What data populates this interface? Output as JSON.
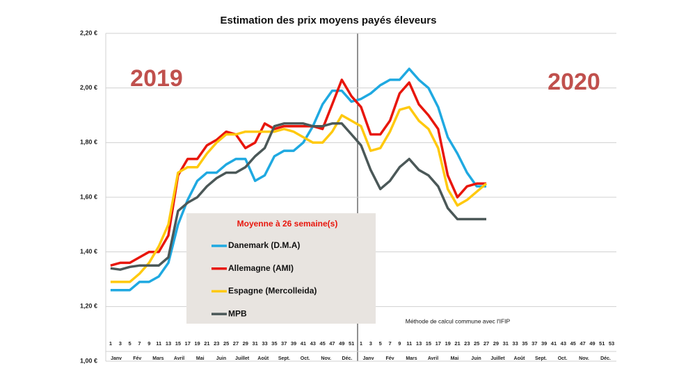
{
  "chart_data": {
    "type": "line",
    "title": "Estimation des prix moyens payés éleveurs",
    "categories": [
      "1",
      "3",
      "5",
      "7",
      "9",
      "11",
      "13",
      "15",
      "17",
      "19",
      "21",
      "23",
      "25",
      "27",
      "29",
      "31",
      "33",
      "35",
      "37",
      "39",
      "41",
      "43",
      "45",
      "47",
      "49",
      "51",
      "1",
      "3",
      "5",
      "7",
      "9",
      "11",
      "13",
      "15",
      "17",
      "19",
      "21",
      "23",
      "25",
      "27",
      "29",
      "31",
      "33",
      "35",
      "37",
      "39",
      "41",
      "43",
      "45",
      "47",
      "49",
      "51",
      "53"
    ],
    "month_labels": [
      "Janv",
      "Fév",
      "Mars",
      "Avril",
      "Mai",
      "Juin",
      "Juillet",
      "Août",
      "Sept.",
      "Oct.",
      "Nov.",
      "Déc.",
      "Janv",
      "Fév",
      "Mars",
      "Avril",
      "Mai",
      "Juin",
      "Juillet",
      "Août",
      "Sept.",
      "Oct.",
      "Nov.",
      "Déc."
    ],
    "year_labels": [
      "2019",
      "2020"
    ],
    "year_color": "#c0504d",
    "legend_title": "Moyenne à 26 semaine(s)",
    "note": "Méthode de calcul commune avec l'IFIP",
    "ylim": [
      1.0,
      2.2
    ],
    "yticks": [
      {
        "value": 1.0,
        "label": "1,00 €"
      },
      {
        "value": 1.2,
        "label": "1,20 €"
      },
      {
        "value": 1.4,
        "label": "1,40 €"
      },
      {
        "value": 1.6,
        "label": "1,60 €"
      },
      {
        "value": 1.8,
        "label": "1,80 €"
      },
      {
        "value": 2.0,
        "label": "2,00 €"
      },
      {
        "value": 2.2,
        "label": "2,20 €"
      }
    ],
    "grid": true,
    "series": [
      {
        "name": "Danemark (D.M.A)",
        "color": "#1fa9e1",
        "values": [
          1.26,
          1.26,
          1.26,
          1.29,
          1.29,
          1.31,
          1.36,
          1.5,
          1.59,
          1.66,
          1.69,
          1.69,
          1.72,
          1.74,
          1.74,
          1.66,
          1.68,
          1.75,
          1.77,
          1.77,
          1.8,
          1.86,
          1.94,
          1.99,
          1.99,
          1.95,
          1.96,
          1.98,
          2.01,
          2.03,
          2.03,
          2.07,
          2.03,
          2.0,
          1.93,
          1.82,
          1.76,
          1.69,
          1.64,
          1.64,
          null,
          null,
          null,
          null,
          null,
          null,
          null,
          null,
          null,
          null,
          null,
          null,
          null
        ]
      },
      {
        "name": "Allemagne (AMI)",
        "color": "#e8160c",
        "values": [
          1.35,
          1.36,
          1.36,
          1.38,
          1.4,
          1.4,
          1.46,
          1.68,
          1.74,
          1.74,
          1.79,
          1.81,
          1.84,
          1.83,
          1.78,
          1.8,
          1.87,
          1.85,
          1.86,
          1.86,
          1.86,
          1.86,
          1.85,
          1.94,
          2.03,
          1.97,
          1.93,
          1.83,
          1.83,
          1.88,
          1.98,
          2.02,
          1.94,
          1.9,
          1.85,
          1.68,
          1.6,
          1.64,
          1.65,
          1.65,
          null,
          null,
          null,
          null,
          null,
          null,
          null,
          null,
          null,
          null,
          null,
          null,
          null
        ]
      },
      {
        "name": "Espagne (Mercolleida)",
        "color": "#ffc90e",
        "values": [
          1.29,
          1.29,
          1.29,
          1.32,
          1.36,
          1.42,
          1.5,
          1.69,
          1.71,
          1.71,
          1.76,
          1.8,
          1.83,
          1.83,
          1.84,
          1.84,
          1.84,
          1.84,
          1.85,
          1.84,
          1.82,
          1.8,
          1.8,
          1.84,
          1.9,
          1.88,
          1.86,
          1.77,
          1.78,
          1.84,
          1.92,
          1.93,
          1.88,
          1.85,
          1.78,
          1.63,
          1.57,
          1.59,
          1.62,
          1.65,
          null,
          null,
          null,
          null,
          null,
          null,
          null,
          null,
          null,
          null,
          null,
          null,
          null
        ]
      },
      {
        "name": "MPB",
        "color": "#4b5858",
        "values": [
          1.34,
          1.335,
          1.345,
          1.35,
          1.35,
          1.35,
          1.38,
          1.55,
          1.58,
          1.6,
          1.64,
          1.67,
          1.69,
          1.69,
          1.71,
          1.75,
          1.78,
          1.86,
          1.87,
          1.87,
          1.87,
          1.86,
          1.86,
          1.87,
          1.87,
          1.83,
          1.79,
          1.7,
          1.63,
          1.66,
          1.71,
          1.74,
          1.7,
          1.68,
          1.64,
          1.56,
          1.52,
          1.52,
          1.52,
          1.52,
          null,
          null,
          null,
          null,
          null,
          null,
          null,
          null,
          null,
          null,
          null,
          null,
          null
        ]
      }
    ]
  }
}
